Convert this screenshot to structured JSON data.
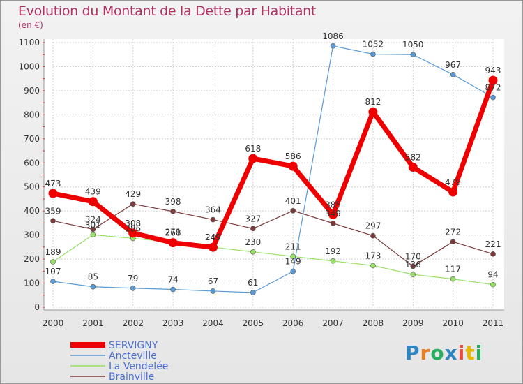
{
  "title": "Evolution du Montant de la Dette par Habitant",
  "unit": "(en €)",
  "logo": {
    "text": "Proxiti"
  },
  "chart_data": {
    "type": "line",
    "categories": [
      "2000",
      "2001",
      "2002",
      "2003",
      "2004",
      "2005",
      "2006",
      "2007",
      "2008",
      "2009",
      "2010",
      "2011"
    ],
    "ylim": [
      0,
      1100
    ],
    "yticks": [
      0,
      100,
      200,
      300,
      400,
      500,
      600,
      700,
      800,
      900,
      1000,
      1100
    ],
    "grid": true,
    "legend": "bottom-left",
    "series": [
      {
        "name": "SERVIGNY",
        "color": "#ee0000",
        "values": [
          473,
          439,
          308,
          268,
          249,
          618,
          586,
          385,
          812,
          582,
          479,
          943
        ]
      },
      {
        "name": "Ancteville",
        "color": "#5b9bd5",
        "values": [
          107,
          85,
          79,
          74,
          67,
          61,
          149,
          1086,
          1052,
          1050,
          967,
          872
        ]
      },
      {
        "name": "La Vendelée",
        "color": "#99e066",
        "values": [
          189,
          301,
          286,
          271,
          249,
          230,
          211,
          192,
          173,
          136,
          117,
          94
        ]
      },
      {
        "name": "Brainville",
        "color": "#7a3a3a",
        "values": [
          359,
          324,
          429,
          398,
          364,
          327,
          401,
          349,
          297,
          170,
          272,
          221
        ]
      }
    ]
  }
}
